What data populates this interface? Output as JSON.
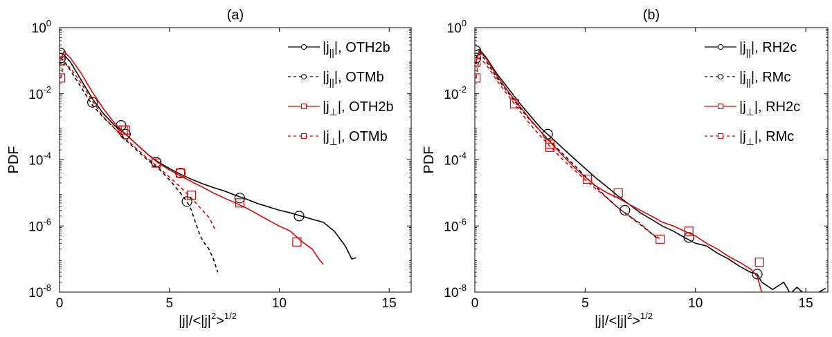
{
  "chart_data": [
    {
      "type": "line",
      "title": "(a)",
      "xlabel": "|j|/<|j|²>^{1/2}",
      "ylabel": "PDF",
      "xlim": [
        0,
        16
      ],
      "ylim_log10": [
        -8,
        0
      ],
      "yscale": "log",
      "x_ticks": [
        0,
        5,
        10,
        15
      ],
      "y_ticks": [
        0,
        -2,
        -4,
        -6,
        -8
      ],
      "grid": false,
      "legend_position": "top-right",
      "series": [
        {
          "name": "|j||, OTH2b",
          "color": "#000000",
          "dash": "solid",
          "marker": "circle",
          "x": [
            0.05,
            0.2,
            0.5,
            1,
            1.5,
            2,
            2.5,
            3,
            3.5,
            4,
            4.5,
            5,
            5.5,
            6,
            6.5,
            7,
            7.5,
            8,
            8.5,
            9,
            9.5,
            10,
            10.5,
            11,
            11.5,
            12,
            12.5,
            13,
            13.3,
            13.5
          ],
          "y": [
            0.17,
            0.15,
            0.09,
            0.025,
            0.007,
            0.0025,
            0.0011,
            0.0006,
            0.0003,
            0.00015,
            8.5e-05,
            5.5e-05,
            3.7e-05,
            2.6e-05,
            1.9e-05,
            1.45e-05,
            1.15e-05,
            8.5e-06,
            6.5e-06,
            4.8e-06,
            3.8e-06,
            3e-06,
            2.5e-06,
            2e-06,
            1.6e-06,
            1.3e-06,
            7e-07,
            2.5e-07,
            1e-07,
            1.1e-07
          ],
          "markers_x": [
            0.05,
            1.5,
            2.8,
            3,
            4.4,
            5.5,
            8.2,
            10.9
          ],
          "markers_y": [
            0.17,
            0.0055,
            0.0011,
            0.0006,
            8.5e-05,
            4e-05,
            7e-06,
            2e-06
          ]
        },
        {
          "name": "|j||, OTMb",
          "color": "#000000",
          "dash": "dashed",
          "marker": "circle",
          "x": [
            0.05,
            0.2,
            0.5,
            1,
            1.5,
            2,
            2.5,
            3,
            3.5,
            4,
            4.5,
            5,
            5.5,
            5.8,
            6,
            6.2,
            6.4,
            6.6,
            6.8,
            7,
            7.2
          ],
          "y": [
            0.12,
            0.1,
            0.05,
            0.015,
            0.0045,
            0.0019,
            0.0009,
            0.0004,
            0.0002,
            0.0001,
            5.5e-05,
            2.5e-05,
            1e-05,
            5.5e-06,
            3e-06,
            1.2e-06,
            5e-07,
            3e-07,
            2e-07,
            1e-07,
            4e-08
          ],
          "markers_x": [
            0.05,
            5.8
          ],
          "markers_y": [
            0.12,
            5.5e-06
          ]
        },
        {
          "name": "|j⊥|, OTH2b",
          "color": "#e00000",
          "dash": "solid",
          "marker": "square",
          "x": [
            0.05,
            0.2,
            0.5,
            1,
            1.5,
            2,
            2.5,
            3,
            3.5,
            4,
            4.5,
            5,
            5.5,
            6,
            6.5,
            7,
            7.5,
            8,
            8.5,
            9,
            9.5,
            10,
            10.5,
            11,
            11.5,
            11.8,
            12
          ],
          "y": [
            0.1,
            0.19,
            0.12,
            0.04,
            0.011,
            0.0035,
            0.0013,
            0.0006,
            0.0003,
            0.00015,
            8e-05,
            5e-05,
            3.3e-05,
            2.2e-05,
            1.5e-05,
            1e-05,
            7e-06,
            5e-06,
            3.5e-06,
            2.3e-06,
            1.5e-06,
            1e-06,
            7e-07,
            3.5e-07,
            2e-07,
            1e-07,
            7e-08
          ],
          "markers_x": [
            0.05,
            2.9,
            4.4,
            5.5,
            8.2,
            10.8
          ],
          "markers_y": [
            0.1,
            0.0008,
            8e-05,
            4e-05,
            5e-06,
            3.3e-07
          ]
        },
        {
          "name": "|j⊥|, OTMb",
          "color": "#e00000",
          "dash": "dashed",
          "marker": "square",
          "x": [
            0.05,
            0.2,
            0.5,
            1,
            1.5,
            2,
            2.5,
            3,
            3.5,
            4,
            4.5,
            5,
            5.5,
            6,
            6.5,
            6.8,
            7,
            7.1
          ],
          "y": [
            0.03,
            0.08,
            0.06,
            0.02,
            0.006,
            0.002,
            0.0009,
            0.00045,
            0.00022,
            0.00011,
            6e-05,
            3e-05,
            1.5e-05,
            7e-06,
            3e-06,
            1.8e-06,
            1e-06,
            7e-07
          ],
          "markers_x": [
            0.05,
            3,
            6
          ],
          "markers_y": [
            0.03,
            0.0008,
            8.5e-06
          ]
        }
      ]
    },
    {
      "type": "line",
      "title": "(b)",
      "xlabel": "|j|/<|j|²>^{1/2}",
      "ylabel": "PDF",
      "xlim": [
        0,
        16
      ],
      "ylim_log10": [
        -8,
        0
      ],
      "yscale": "log",
      "x_ticks": [
        0,
        5,
        10,
        15
      ],
      "y_ticks": [
        0,
        -2,
        -4,
        -6,
        -8
      ],
      "grid": false,
      "legend_position": "top-right",
      "series": [
        {
          "name": "|j||, RH2c",
          "color": "#000000",
          "dash": "solid",
          "marker": "circle",
          "x": [
            0.05,
            0.2,
            0.5,
            1,
            1.5,
            2,
            2.5,
            3,
            3.5,
            4,
            4.5,
            5,
            5.5,
            6,
            6.5,
            7,
            7.5,
            8,
            8.5,
            9,
            9.5,
            10,
            10.5,
            11,
            11.5,
            12,
            12.5,
            12.8,
            13,
            13.5,
            14,
            14.3,
            14.6,
            15,
            15.3,
            15.6,
            15.9
          ],
          "y": [
            0.2,
            0.22,
            0.13,
            0.04,
            0.015,
            0.0055,
            0.0022,
            0.0009,
            0.00045,
            0.00022,
            0.00011,
            5.5e-05,
            2.8e-05,
            1.5e-05,
            8e-06,
            4.5e-06,
            2.5e-06,
            1.6e-06,
            1e-06,
            7e-07,
            4.5e-07,
            3e-07,
            2.5e-07,
            1.5e-07,
            1e-07,
            6e-08,
            4e-08,
            3.5e-08,
            2e-08,
            1.2e-08,
            2e-08,
            9e-09,
            1.4e-08,
            8e-09,
            5e-09,
            1e-08,
            1.3e-08
          ],
          "markers_x": [
            0.05,
            3.3,
            6.8,
            9.7,
            12.8
          ],
          "markers_y": [
            0.2,
            0.0006,
            3e-06,
            4.5e-07,
            3.5e-08
          ]
        },
        {
          "name": "|j||, RMc",
          "color": "#000000",
          "dash": "dashed",
          "marker": "circle",
          "x": [
            0.05,
            0.2,
            0.5,
            1,
            1.5,
            2,
            2.5,
            3,
            3.5,
            4,
            4.5,
            5,
            5.5,
            6,
            6.5,
            7,
            7.5,
            8,
            8.3
          ],
          "y": [
            0.12,
            0.18,
            0.1,
            0.03,
            0.011,
            0.004,
            0.0016,
            0.0007,
            0.00032,
            0.00015,
            7e-05,
            3.2e-05,
            1.5e-05,
            7e-06,
            3.5e-06,
            2e-06,
            1.1e-06,
            6e-07,
            4e-07
          ],
          "markers_x": [
            0.05
          ],
          "markers_y": [
            0.12
          ]
        },
        {
          "name": "|j⊥|, RH2c",
          "color": "#e00000",
          "dash": "solid",
          "marker": "square",
          "x": [
            0.05,
            0.2,
            0.5,
            1,
            1.5,
            2,
            2.5,
            3,
            3.5,
            4,
            4.5,
            5,
            5.5,
            6,
            6.5,
            7,
            7.5,
            8,
            8.5,
            9,
            9.5,
            10,
            10.5,
            11,
            11.5,
            12,
            12.5,
            12.8,
            13,
            13.2
          ],
          "y": [
            0.09,
            0.2,
            0.12,
            0.035,
            0.012,
            0.0045,
            0.0017,
            0.0007,
            0.0003,
            0.00013,
            6e-05,
            3e-05,
            1.6e-05,
            1e-05,
            7e-06,
            4.5e-06,
            3e-06,
            2e-06,
            1.3e-06,
            1e-06,
            7e-07,
            5e-07,
            3e-07,
            2e-07,
            1.2e-07,
            8e-08,
            5e-08,
            3e-08,
            1e-08,
            8e-09
          ],
          "markers_x": [
            0.05,
            1.8,
            3.4,
            5.1,
            6.5,
            9.7,
            12.9
          ],
          "markers_y": [
            0.09,
            0.005,
            0.0003,
            2.6e-05,
            1e-05,
            7e-07,
            8e-08
          ]
        },
        {
          "name": "|j⊥|, RMc",
          "color": "#e00000",
          "dash": "dashed",
          "marker": "square",
          "x": [
            0.05,
            0.2,
            0.5,
            1,
            1.5,
            2,
            2.5,
            3,
            3.5,
            4,
            4.5,
            5,
            5.5,
            6,
            6.5,
            7,
            7.5,
            8,
            8.4
          ],
          "y": [
            0.03,
            0.12,
            0.08,
            0.025,
            0.009,
            0.0032,
            0.0012,
            0.0005,
            0.00022,
            0.0001,
            5e-05,
            2.5e-05,
            1.3e-05,
            7e-06,
            3.5e-06,
            2e-06,
            1.2e-06,
            6e-07,
            4e-07
          ],
          "markers_x": [
            0.05,
            3.4,
            8.4
          ],
          "markers_y": [
            0.03,
            0.00024,
            4e-07
          ]
        }
      ]
    }
  ]
}
